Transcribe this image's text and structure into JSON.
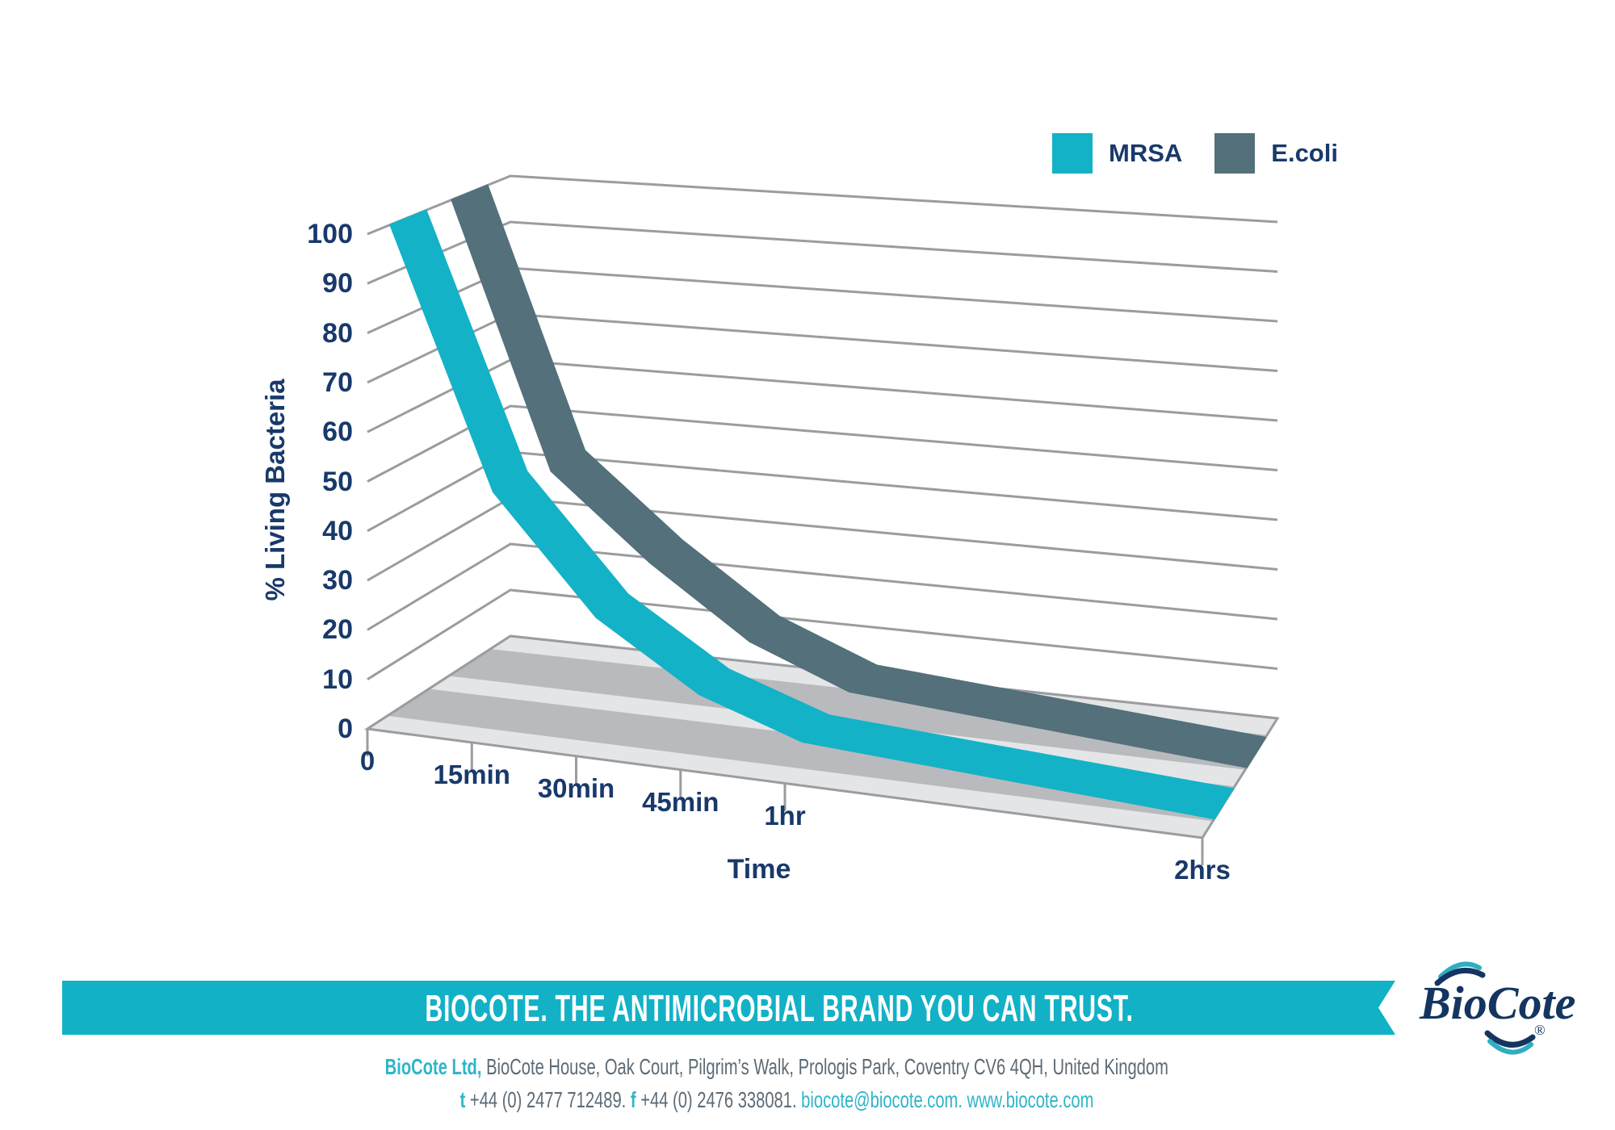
{
  "chart_data": {
    "type": "line",
    "style": "3d-ribbon",
    "title": "",
    "xlabel": "Time",
    "ylabel": "% Living Bacteria",
    "x_tick_labels": [
      "0",
      "15min",
      "30min",
      "45min",
      "1hr",
      "2hrs"
    ],
    "x_minutes": [
      0,
      15,
      30,
      45,
      60,
      120
    ],
    "xlim_minutes": [
      0,
      120
    ],
    "y_ticks": [
      0,
      10,
      20,
      30,
      40,
      50,
      60,
      70,
      80,
      90,
      100
    ],
    "ylim": [
      0,
      100
    ],
    "grid": true,
    "legend_position": "top-right",
    "series": [
      {
        "name": "MRSA",
        "color": "#14B2C6",
        "values": [
          100,
          48,
          25,
          12,
          5,
          0
        ]
      },
      {
        "name": "E.coli",
        "color": "#53707B",
        "values": [
          100,
          45,
          28,
          14,
          6,
          0
        ]
      }
    ],
    "colors": {
      "gridline": "#9A9CA0",
      "floor_light": "#E4E5E7",
      "floor_stripe": "#B9BABD",
      "floor_border": "#9A9CA0",
      "label_navy": "#18396A"
    }
  },
  "legend": {
    "items": [
      {
        "label": "MRSA",
        "color": "#14B2C6"
      },
      {
        "label": "E.coli",
        "color": "#53707B"
      }
    ]
  },
  "banner": {
    "text": "BIOCOTE. THE ANTIMICROBIAL BRAND YOU CAN TRUST.",
    "color": "#12B1C6"
  },
  "footer": {
    "line1": [
      {
        "text": "BioCote Ltd,",
        "style": "accent-bold"
      },
      {
        "text": " BioCote House, Oak Court, Pilgrim’s Walk, Prologis Park, Coventry CV6 4QH, United Kingdom",
        "style": "plain"
      }
    ],
    "line2": [
      {
        "text": "t",
        "style": "accent-bold"
      },
      {
        "text": " +44 (0) 2477 712489. ",
        "style": "plain"
      },
      {
        "text": "f",
        "style": "accent-bold"
      },
      {
        "text": " +44 (0) 2476 338081. ",
        "style": "plain"
      },
      {
        "text": "biocote@biocote.com.",
        "style": "accent"
      },
      {
        "text": " ",
        "style": "plain"
      },
      {
        "text": "www.biocote.com",
        "style": "accent"
      }
    ]
  },
  "logo": {
    "text": "BioCote",
    "registered": "®",
    "navy": "#143560",
    "teal": "#2FAEC2"
  }
}
